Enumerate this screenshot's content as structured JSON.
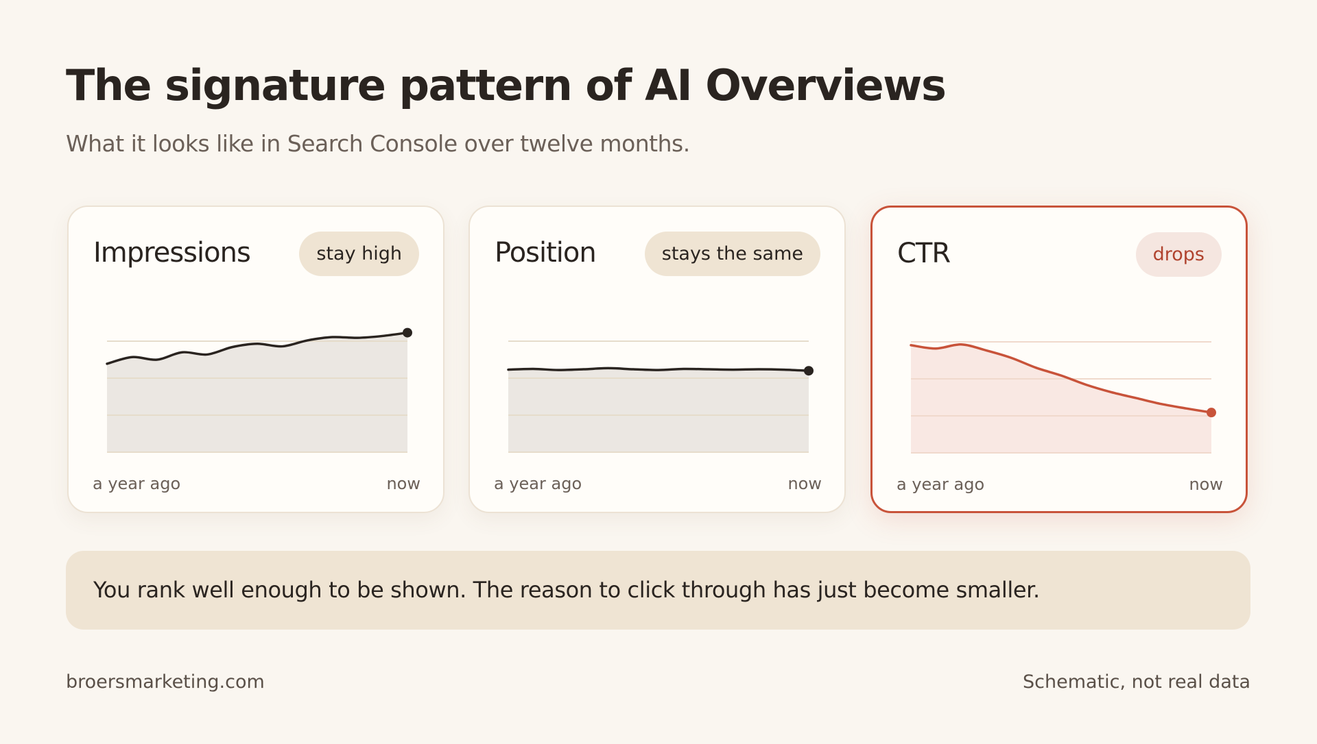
{
  "title": "The signature pattern of AI Overviews",
  "subtitle": "What it looks like in Search Console over twelve months.",
  "chart_data": [
    {
      "type": "line",
      "title": "Impressions",
      "badge": "stay high",
      "x_labels": [
        "a year ago",
        "now"
      ],
      "values": [
        2.39,
        2.57,
        2.5,
        2.7,
        2.64,
        2.84,
        2.93,
        2.86,
        3.02,
        3.11,
        3.09,
        3.14,
        3.23
      ],
      "color": "#2a2420",
      "ylim": [
        0,
        3
      ],
      "yticks": [
        0,
        1,
        2,
        3
      ],
      "grid": true,
      "highlight": false
    },
    {
      "type": "line",
      "title": "Position",
      "badge": "stays the same",
      "x_labels": [
        "a year ago",
        "now"
      ],
      "values": [
        2.23,
        2.25,
        2.22,
        2.24,
        2.27,
        2.24,
        2.22,
        2.25,
        2.24,
        2.23,
        2.24,
        2.23,
        2.2
      ],
      "color": "#2a2420",
      "ylim": [
        0,
        3
      ],
      "yticks": [
        0,
        1,
        2,
        3
      ],
      "grid": true,
      "highlight": false
    },
    {
      "type": "line",
      "title": "CTR",
      "badge": "drops",
      "x_labels": [
        "a year ago",
        "now"
      ],
      "values": [
        2.91,
        2.82,
        2.93,
        2.77,
        2.57,
        2.3,
        2.09,
        1.84,
        1.64,
        1.48,
        1.32,
        1.2,
        1.09
      ],
      "color": "#c8533a",
      "ylim": [
        0,
        3
      ],
      "yticks": [
        0,
        1,
        2,
        3
      ],
      "grid": true,
      "highlight": true
    }
  ],
  "note": "You rank well enough to be shown. The reason to click through has just become smaller.",
  "footer": {
    "left": "broersmarketing.com",
    "right": "Schematic, not real data"
  }
}
